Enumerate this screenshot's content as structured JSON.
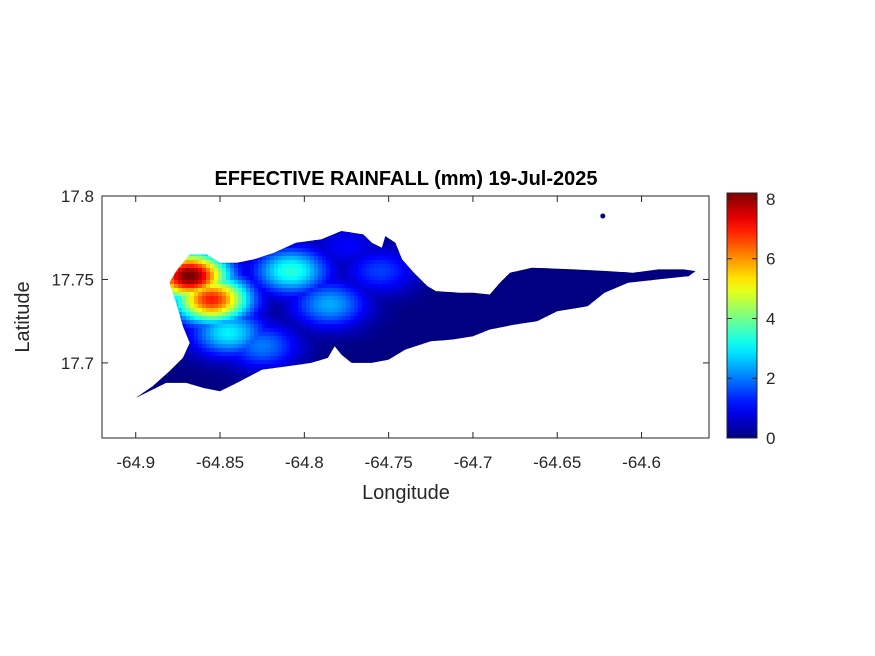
{
  "chart_data": {
    "type": "heatmap",
    "title": "EFFECTIVE RAINFALL (mm) 19-Jul-2025",
    "xlabel": "Longitude",
    "ylabel": "Latitude",
    "xlim": [
      -64.92,
      -64.56
    ],
    "ylim": [
      17.655,
      17.8
    ],
    "x_ticks": [
      -64.9,
      -64.85,
      -64.8,
      -64.75,
      -64.7,
      -64.65,
      -64.6
    ],
    "x_tick_labels": [
      "-64.9",
      "-64.85",
      "-64.8",
      "-64.75",
      "-64.7",
      "-64.65",
      "-64.6"
    ],
    "y_ticks": [
      17.7,
      17.75,
      17.8
    ],
    "y_tick_labels": [
      "17.7",
      "17.75",
      "17.8"
    ],
    "colormap": "jet",
    "color_range": [
      0,
      8.2
    ],
    "colorbar_ticks": [
      0,
      2,
      4,
      6,
      8
    ],
    "colorbar_tick_labels": [
      "0",
      "2",
      "4",
      "6",
      "8"
    ],
    "grid": false,
    "rainfall_centers": [
      {
        "lon": -64.868,
        "lat": 17.752,
        "value": 8.4
      },
      {
        "lon": -64.855,
        "lat": 17.738,
        "value": 7.0
      },
      {
        "lon": -64.808,
        "lat": 17.755,
        "value": 3.4
      },
      {
        "lon": -64.845,
        "lat": 17.718,
        "value": 3.0
      },
      {
        "lon": -64.785,
        "lat": 17.735,
        "value": 2.4
      },
      {
        "lon": -64.755,
        "lat": 17.755,
        "value": 1.5
      },
      {
        "lon": -64.775,
        "lat": 17.77,
        "value": 1.0
      },
      {
        "lon": -64.825,
        "lat": 17.71,
        "value": 2.0
      }
    ],
    "island_outline": [
      [
        -64.9,
        17.679
      ],
      [
        -64.89,
        17.686
      ],
      [
        -64.88,
        17.695
      ],
      [
        -64.872,
        17.703
      ],
      [
        -64.868,
        17.712
      ],
      [
        -64.872,
        17.722
      ],
      [
        -64.876,
        17.736
      ],
      [
        -64.88,
        17.748
      ],
      [
        -64.876,
        17.755
      ],
      [
        -64.872,
        17.76
      ],
      [
        -64.868,
        17.765
      ],
      [
        -64.858,
        17.765
      ],
      [
        -64.85,
        17.76
      ],
      [
        -64.84,
        17.76
      ],
      [
        -64.83,
        17.762
      ],
      [
        -64.818,
        17.766
      ],
      [
        -64.805,
        17.772
      ],
      [
        -64.79,
        17.774
      ],
      [
        -64.778,
        17.779
      ],
      [
        -64.765,
        17.777
      ],
      [
        -64.76,
        17.772
      ],
      [
        -64.754,
        17.769
      ],
      [
        -64.752,
        17.776
      ],
      [
        -64.746,
        17.772
      ],
      [
        -64.742,
        17.762
      ],
      [
        -64.735,
        17.754
      ],
      [
        -64.727,
        17.746
      ],
      [
        -64.722,
        17.743
      ],
      [
        -64.708,
        17.742
      ],
      [
        -64.7,
        17.742
      ],
      [
        -64.69,
        17.741
      ],
      [
        -64.684,
        17.748
      ],
      [
        -64.678,
        17.754
      ],
      [
        -64.665,
        17.757
      ],
      [
        -64.64,
        17.756
      ],
      [
        -64.62,
        17.755
      ],
      [
        -64.605,
        17.754
      ],
      [
        -64.59,
        17.756
      ],
      [
        -64.575,
        17.756
      ],
      [
        -64.568,
        17.755
      ],
      [
        -64.572,
        17.752
      ],
      [
        -64.59,
        17.75
      ],
      [
        -64.608,
        17.748
      ],
      [
        -64.622,
        17.742
      ],
      [
        -64.632,
        17.734
      ],
      [
        -64.65,
        17.731
      ],
      [
        -64.662,
        17.725
      ],
      [
        -64.675,
        17.723
      ],
      [
        -64.69,
        17.72
      ],
      [
        -64.7,
        17.716
      ],
      [
        -64.712,
        17.714
      ],
      [
        -64.725,
        17.713
      ],
      [
        -64.74,
        17.708
      ],
      [
        -64.75,
        17.702
      ],
      [
        -64.76,
        17.7
      ],
      [
        -64.772,
        17.7
      ],
      [
        -64.778,
        17.705
      ],
      [
        -64.782,
        17.71
      ],
      [
        -64.786,
        17.703
      ],
      [
        -64.796,
        17.7
      ],
      [
        -64.81,
        17.698
      ],
      [
        -64.825,
        17.696
      ],
      [
        -64.84,
        17.688
      ],
      [
        -64.85,
        17.683
      ],
      [
        -64.86,
        17.685
      ],
      [
        -64.87,
        17.688
      ],
      [
        -64.882,
        17.688
      ],
      [
        -64.892,
        17.683
      ],
      [
        -64.898,
        17.68
      ]
    ],
    "islet": [
      -64.623,
      17.788
    ]
  }
}
